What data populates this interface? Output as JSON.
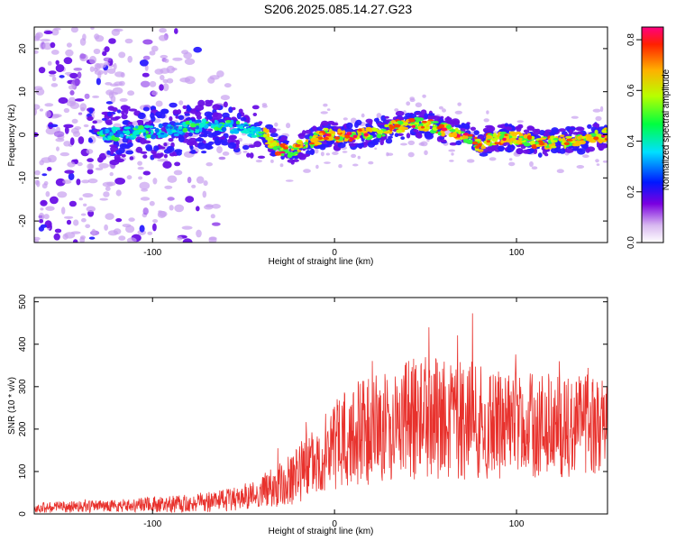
{
  "title": "S206.2025.085.14.27.G23",
  "chart_data": [
    {
      "type": "heatmap",
      "xlabel": "Height of straight line (km)",
      "ylabel": "Frequency (Hz)",
      "xlim": [
        -165,
        150
      ],
      "ylim": [
        -25,
        25
      ],
      "x_ticks": [
        "-100",
        "0",
        "100"
      ],
      "y_ticks": [
        "-20",
        "-10",
        "0",
        "10",
        "20"
      ],
      "colorbar": {
        "label": "Normalized spectral amplitude",
        "range": [
          0,
          0.85
        ],
        "ticks": [
          "0.0",
          "0.2",
          "0.4",
          "0.6",
          "0.8"
        ]
      },
      "ridge": {
        "x": [
          -130,
          -110,
          -90,
          -75,
          -60,
          -45,
          -38,
          -32,
          -25,
          -15,
          -5,
          5,
          15,
          25,
          35,
          45,
          55,
          65,
          75,
          80,
          85,
          95,
          105,
          115,
          125,
          135,
          145,
          150
        ],
        "freq": [
          0,
          0.5,
          1,
          2,
          2,
          1,
          0,
          -3,
          -4,
          -2,
          0,
          -0.5,
          0,
          1,
          2,
          2.5,
          2,
          0.5,
          -0.5,
          -3,
          -1,
          -0.5,
          -1,
          -2,
          -1.5,
          -1,
          -0.5,
          0
        ]
      }
    },
    {
      "type": "line",
      "xlabel": "Height of straight line (km)",
      "ylabel": "SNR (10 * v/v)",
      "xlim": [
        -165,
        150
      ],
      "ylim": [
        0,
        510
      ],
      "x_ticks": [
        "-100",
        "0",
        "100"
      ],
      "y_ticks": [
        "0",
        "100",
        "200",
        "300",
        "400",
        "500"
      ],
      "color": "#e8312c",
      "envelope": {
        "x": [
          -165,
          -140,
          -120,
          -100,
          -80,
          -65,
          -55,
          -45,
          -35,
          -25,
          -15,
          -5,
          5,
          15,
          25,
          35,
          45,
          55,
          65,
          75,
          85,
          95,
          105,
          115,
          125,
          135,
          150
        ],
        "mean": [
          15,
          17,
          20,
          22,
          25,
          30,
          35,
          45,
          60,
          80,
          110,
          140,
          170,
          190,
          210,
          215,
          225,
          230,
          225,
          220,
          215,
          210,
          205,
          210,
          205,
          210,
          210
        ],
        "spread": [
          12,
          14,
          15,
          18,
          22,
          25,
          28,
          35,
          45,
          60,
          80,
          100,
          120,
          125,
          135,
          140,
          145,
          150,
          145,
          140,
          135,
          130,
          125,
          125,
          120,
          120,
          115
        ]
      }
    }
  ]
}
